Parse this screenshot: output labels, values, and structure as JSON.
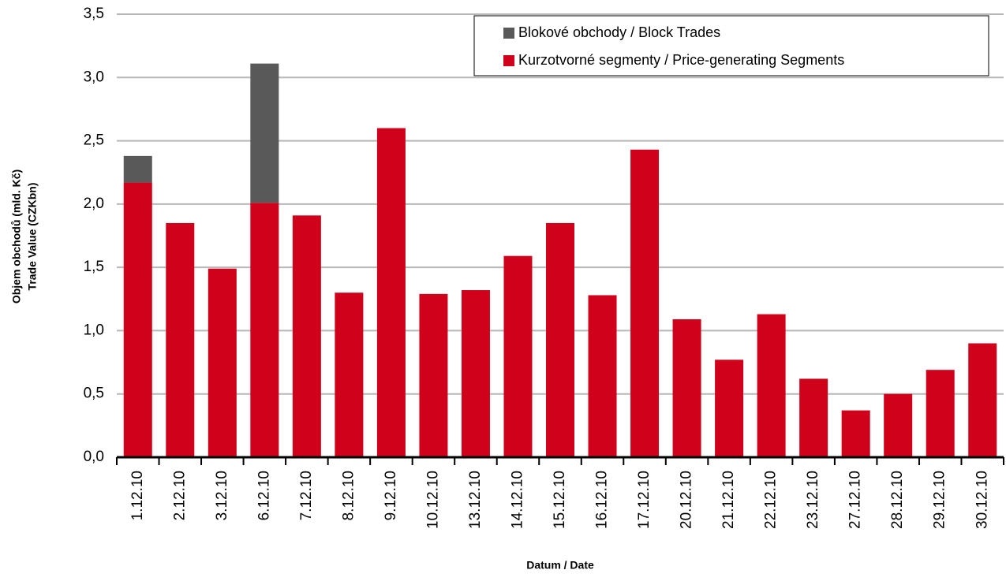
{
  "chart_data": {
    "type": "stacked_bar",
    "ylabel": [
      "Objem obchodů (mld. Kč)",
      "Trade Value (CZKbn)"
    ],
    "xlabel": "Datum / Date",
    "categories": [
      "1.12.10",
      "2.12.10",
      "3.12.10",
      "6.12.10",
      "7.12.10",
      "8.12.10",
      "9.12.10",
      "10.12.10",
      "13.12.10",
      "14.12.10",
      "15.12.10",
      "16.12.10",
      "17.12.10",
      "20.12.10",
      "21.12.10",
      "22.12.10",
      "23.12.10",
      "27.12.10",
      "28.12.10",
      "29.12.10",
      "30.12.10"
    ],
    "series": [
      {
        "name": "Kurzotvorné segmenty / Price-generating Segments",
        "color": "#d0021b",
        "values": [
          2.17,
          1.85,
          1.49,
          2.01,
          1.91,
          1.3,
          2.6,
          1.29,
          1.32,
          1.59,
          1.85,
          1.28,
          2.43,
          1.09,
          0.77,
          1.13,
          0.62,
          0.37,
          0.5,
          0.69,
          0.9
        ]
      },
      {
        "name": "Blokové obchody / Block Trades",
        "color": "#595959",
        "values": [
          0.21,
          0,
          0,
          1.1,
          0,
          0,
          0,
          0,
          0,
          0,
          0,
          0,
          0,
          0,
          0,
          0,
          0,
          0,
          0,
          0,
          0
        ]
      }
    ],
    "ylim": [
      0,
      3.5
    ],
    "yticks": [
      {
        "value": 0,
        "label": "0,0"
      },
      {
        "value": 0.5,
        "label": "0,5"
      },
      {
        "value": 1,
        "label": "1,0"
      },
      {
        "value": 1.5,
        "label": "1,5"
      },
      {
        "value": 2,
        "label": "2,0"
      },
      {
        "value": 2.5,
        "label": "2,5"
      },
      {
        "value": 3,
        "label": "3,0"
      },
      {
        "value": 3.5,
        "label": "3,5"
      }
    ],
    "grid": true,
    "legend": "upper right"
  }
}
